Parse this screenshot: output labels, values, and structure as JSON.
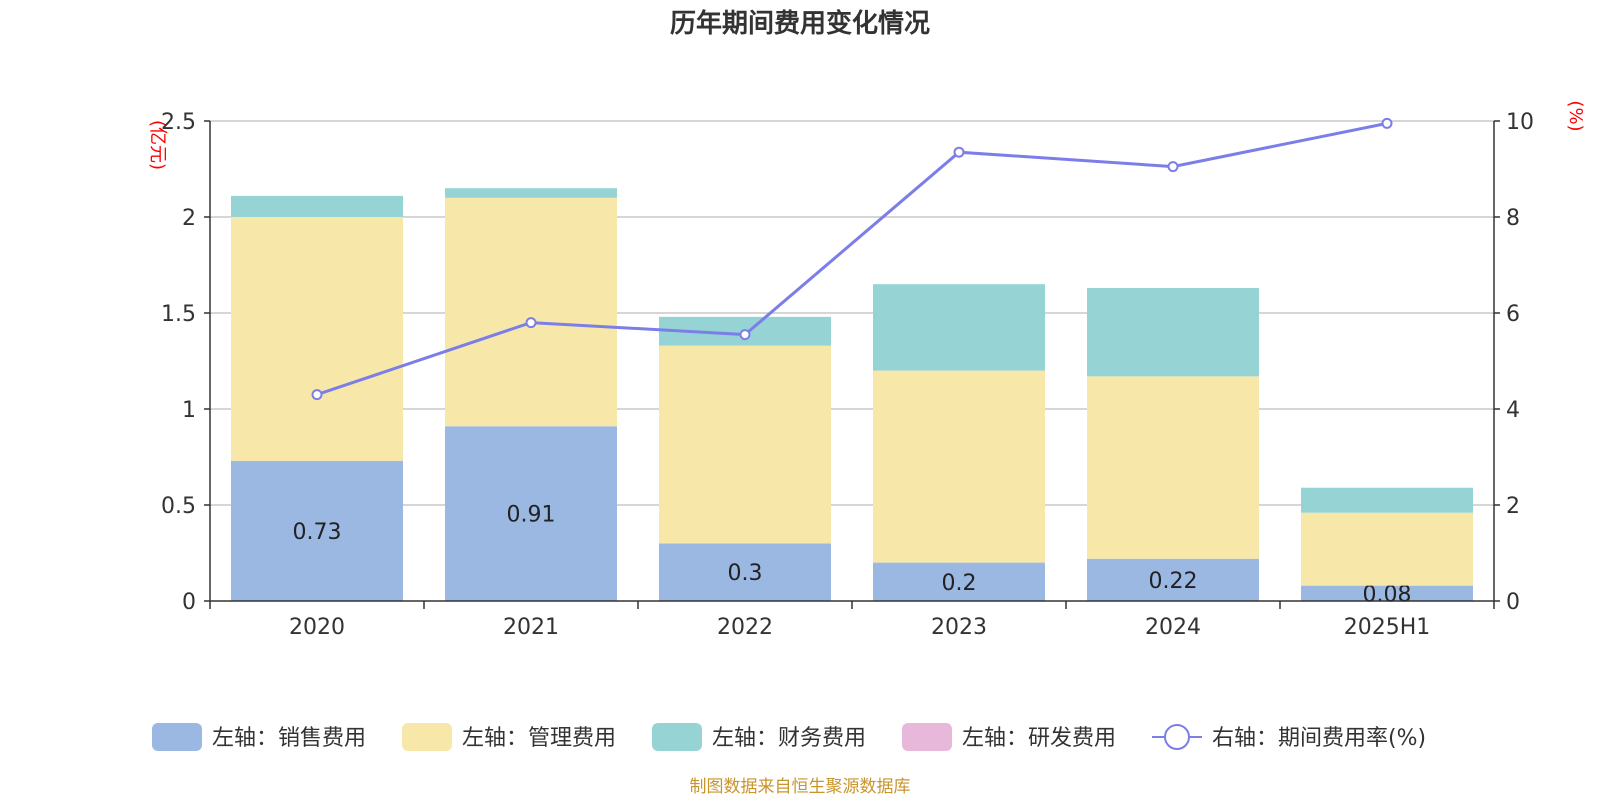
{
  "chart_data": {
    "type": "bar",
    "stacked": true,
    "title": "历年期间费用变化情况",
    "categories": [
      "2020",
      "2021",
      "2022",
      "2023",
      "2024",
      "2025H1"
    ],
    "y_left": {
      "unit": "(亿元)",
      "min": 0,
      "max": 2.5,
      "ticks": [
        "0",
        "0.5",
        "1",
        "1.5",
        "2",
        "2.5"
      ]
    },
    "y_right": {
      "unit": "(%)",
      "min": 0,
      "max": 10,
      "ticks": [
        "0",
        "2",
        "4",
        "6",
        "8",
        "10"
      ]
    },
    "series": [
      {
        "name": "左轴：销售费用",
        "axis": "left",
        "color": "#9bb8e2",
        "values": [
          0.73,
          0.91,
          0.3,
          0.2,
          0.22,
          0.08
        ],
        "labels": [
          "0.73",
          "0.91",
          "0.3",
          "0.2",
          "0.22",
          "0.08"
        ]
      },
      {
        "name": "左轴：管理费用",
        "axis": "left",
        "color": "#f7e8a9",
        "values": [
          1.27,
          1.19,
          1.03,
          1.0,
          0.95,
          0.38
        ]
      },
      {
        "name": "左轴：财务费用",
        "axis": "left",
        "color": "#96d3d4",
        "values": [
          0.11,
          0.05,
          0.15,
          0.45,
          0.46,
          0.13
        ]
      },
      {
        "name": "左轴：研发费用",
        "axis": "left",
        "color": "#e7b8da",
        "values": [
          0,
          0,
          0,
          0,
          0,
          0
        ]
      },
      {
        "name": "右轴：期间费用率(%)",
        "axis": "right",
        "type": "line",
        "color": "#7b7ee8",
        "values": [
          4.3,
          5.8,
          5.55,
          9.35,
          9.05,
          9.95
        ]
      }
    ],
    "legend_position": "bottom",
    "grid": true
  },
  "source": "制图数据来自恒生聚源数据库"
}
